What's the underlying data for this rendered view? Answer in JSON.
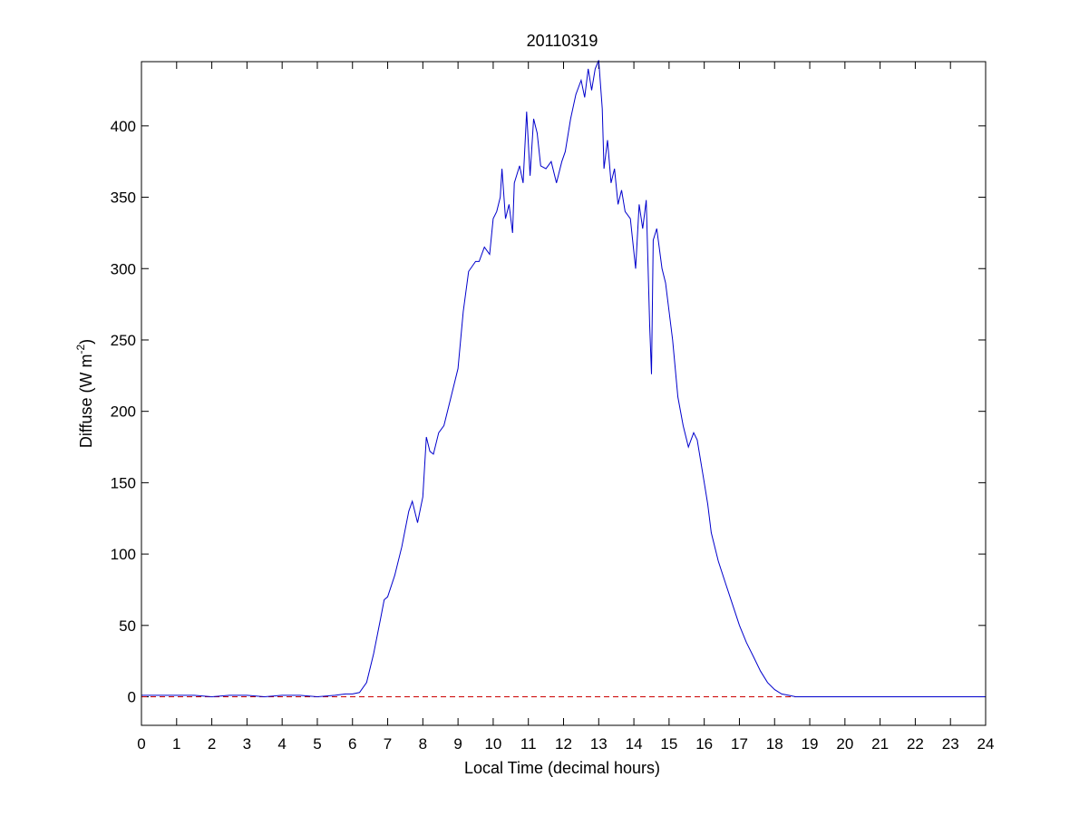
{
  "chart_data": {
    "type": "line",
    "title": "20110319",
    "xlabel": "Local Time (decimal hours)",
    "ylabel": "Diffuse (W m",
    "ylabel_sup": "-2",
    "ylabel_close": ")",
    "xlim": [
      0,
      24
    ],
    "ylim": [
      -20,
      445
    ],
    "xticks": [
      0,
      1,
      2,
      3,
      4,
      5,
      6,
      7,
      8,
      9,
      10,
      11,
      12,
      13,
      14,
      15,
      16,
      17,
      18,
      19,
      20,
      21,
      22,
      23,
      24
    ],
    "yticks": [
      0,
      50,
      100,
      150,
      200,
      250,
      300,
      350,
      400
    ],
    "grid": false,
    "colors": {
      "series": "#0000cc",
      "zero_line": "#cc0000",
      "axes": "#000000"
    },
    "reference_line": {
      "y": 0,
      "style": "dashed"
    },
    "series": [
      {
        "x": [
          0,
          0.5,
          1,
          1.5,
          2,
          2.5,
          3,
          3.5,
          4,
          4.5,
          5,
          5.5,
          5.8,
          6.0,
          6.2,
          6.4,
          6.6,
          6.8,
          6.9,
          7.0,
          7.2,
          7.4,
          7.6,
          7.7,
          7.85,
          8.0,
          8.1,
          8.2,
          8.3,
          8.45,
          8.6,
          8.8,
          9.0,
          9.15,
          9.3,
          9.5,
          9.6,
          9.75,
          9.9,
          10.0,
          10.1,
          10.2,
          10.25,
          10.35,
          10.45,
          10.55,
          10.6,
          10.75,
          10.85,
          10.95,
          11.05,
          11.15,
          11.25,
          11.35,
          11.5,
          11.65,
          11.8,
          11.95,
          12.05,
          12.2,
          12.35,
          12.5,
          12.6,
          12.7,
          12.8,
          12.9,
          13.0,
          13.1,
          13.15,
          13.25,
          13.35,
          13.45,
          13.55,
          13.65,
          13.75,
          13.9,
          14.05,
          14.15,
          14.25,
          14.35,
          14.45,
          14.5,
          14.55,
          14.65,
          14.8,
          14.9,
          15.0,
          15.1,
          15.25,
          15.4,
          15.55,
          15.7,
          15.8,
          15.9,
          16.0,
          16.1,
          16.2,
          16.4,
          16.6,
          16.8,
          17.0,
          17.2,
          17.4,
          17.6,
          17.8,
          18.0,
          18.2,
          18.4,
          18.6,
          18.8,
          19,
          20,
          21,
          22,
          23,
          24
        ],
        "values": [
          1,
          1,
          1,
          1,
          0,
          1,
          1,
          0,
          1,
          1,
          0,
          1,
          2,
          2,
          3,
          10,
          30,
          55,
          68,
          70,
          85,
          105,
          130,
          137,
          122,
          140,
          182,
          172,
          170,
          185,
          190,
          210,
          230,
          270,
          298,
          305,
          305,
          315,
          310,
          335,
          340,
          350,
          370,
          335,
          345,
          325,
          360,
          372,
          360,
          410,
          365,
          405,
          395,
          372,
          370,
          375,
          360,
          375,
          382,
          405,
          422,
          432,
          420,
          440,
          425,
          440,
          446,
          412,
          370,
          390,
          360,
          370,
          345,
          355,
          340,
          335,
          300,
          345,
          328,
          348,
          260,
          226,
          320,
          328,
          300,
          290,
          270,
          250,
          210,
          190,
          175,
          185,
          180,
          165,
          150,
          135,
          115,
          95,
          80,
          65,
          50,
          38,
          28,
          18,
          10,
          5,
          2,
          1,
          0,
          0,
          0,
          0,
          0,
          0,
          0,
          0
        ]
      }
    ]
  }
}
